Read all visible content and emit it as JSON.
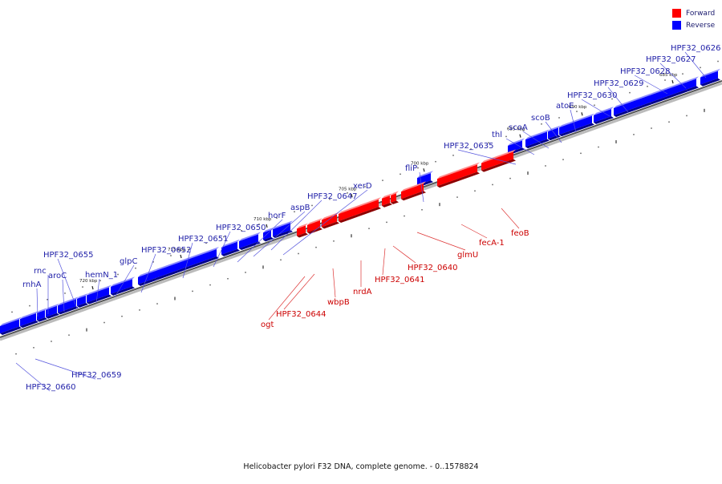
{
  "legend": {
    "forward_label": "Forward",
    "reverse_label": "Reverse",
    "forward_color": "#ff0000",
    "reverse_color": "#0000ff"
  },
  "caption": "Helicobacter pylori F32 DNA, complete genome. - 0..1578824",
  "colors": {
    "forward": "#ff0000",
    "reverse": "#0000ff",
    "backbone": "#555555",
    "label_reverse": "#1f1fa8",
    "label_forward": "#cc0000"
  },
  "ticks": [
    {
      "label": "685 kbp"
    },
    {
      "label": "690 kbp"
    },
    {
      "label": "695 kbp"
    },
    {
      "label": "700 kbp"
    },
    {
      "label": "705 kbp"
    },
    {
      "label": "710 kbp"
    },
    {
      "label": "715 kbp"
    },
    {
      "label": "720 kbp"
    }
  ],
  "genes_reverse": [
    {
      "label": "HPF32_0626"
    },
    {
      "label": "HPF32_0627"
    },
    {
      "label": "HPF32_0628"
    },
    {
      "label": "HPF32_0629"
    },
    {
      "label": "HPF32_0630"
    },
    {
      "label": "atoE"
    },
    {
      "label": "scoB"
    },
    {
      "label": "scoA"
    },
    {
      "label": "thl"
    },
    {
      "label": "HPF32_0635"
    },
    {
      "label": "fliP"
    },
    {
      "label": "xerD"
    },
    {
      "label": "HPF32_0647"
    },
    {
      "label": "aspB"
    },
    {
      "label": "horF"
    },
    {
      "label": "HPF32_0650"
    },
    {
      "label": "HPF32_0651"
    },
    {
      "label": "HPF32_0652"
    },
    {
      "label": "glpC"
    },
    {
      "label": "hemN_1"
    },
    {
      "label": "HPF32_0655"
    },
    {
      "label": "aroC"
    },
    {
      "label": "rnc"
    },
    {
      "label": "rnhA"
    },
    {
      "label": "HPF32_0659"
    },
    {
      "label": "HPF32_0660"
    }
  ],
  "genes_forward": [
    {
      "label": "feoB"
    },
    {
      "label": "fecA-1"
    },
    {
      "label": "glmU"
    },
    {
      "label": "HPF32_0640"
    },
    {
      "label": "HPF32_0641"
    },
    {
      "label": "nrdA"
    },
    {
      "label": "wbpB"
    },
    {
      "label": "HPF32_0644"
    },
    {
      "label": "ogt"
    }
  ]
}
